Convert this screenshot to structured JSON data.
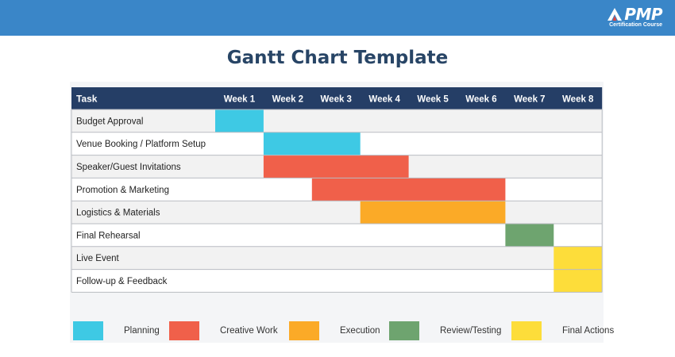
{
  "brand": {
    "name": "PMP",
    "tagline": "Certification Course"
  },
  "title": "Gantt Chart Template",
  "chart_data": {
    "type": "gantt",
    "task_header": "Task",
    "columns": [
      "Week 1",
      "Week 2",
      "Week 3",
      "Week 4",
      "Week 5",
      "Week 6",
      "Week 7",
      "Week 8"
    ],
    "tasks": [
      {
        "name": "Budget Approval",
        "start": 1,
        "end": 1,
        "category": "Planning"
      },
      {
        "name": "Venue Booking / Platform Setup",
        "start": 2,
        "end": 3,
        "category": "Planning"
      },
      {
        "name": "Speaker/Guest Invitations",
        "start": 2,
        "end": 4,
        "category": "Creative Work"
      },
      {
        "name": "Promotion & Marketing",
        "start": 3,
        "end": 6,
        "category": "Creative Work"
      },
      {
        "name": "Logistics & Materials",
        "start": 4,
        "end": 6,
        "category": "Execution"
      },
      {
        "name": "Final Rehearsal",
        "start": 7,
        "end": 7,
        "category": "Review/Testing"
      },
      {
        "name": "Live Event",
        "start": 8,
        "end": 8,
        "category": "Final Actions"
      },
      {
        "name": "Follow-up & Feedback",
        "start": 8,
        "end": 8,
        "category": "Final Actions"
      }
    ],
    "legend": [
      {
        "label": "Planning",
        "color": "#3ec9e4"
      },
      {
        "label": "Creative Work",
        "color": "#f0604a"
      },
      {
        "label": "Execution",
        "color": "#fbaa27"
      },
      {
        "label": "Review/Testing",
        "color": "#6ea46f"
      },
      {
        "label": "Final Actions",
        "color": "#fddd3a"
      }
    ],
    "colors": {
      "header_bg": "#253e66",
      "header_text": "#ffffff",
      "row_shaded": "#f2f2f2",
      "row_plain": "#ffffff",
      "grid": "#b9bcc2"
    }
  }
}
